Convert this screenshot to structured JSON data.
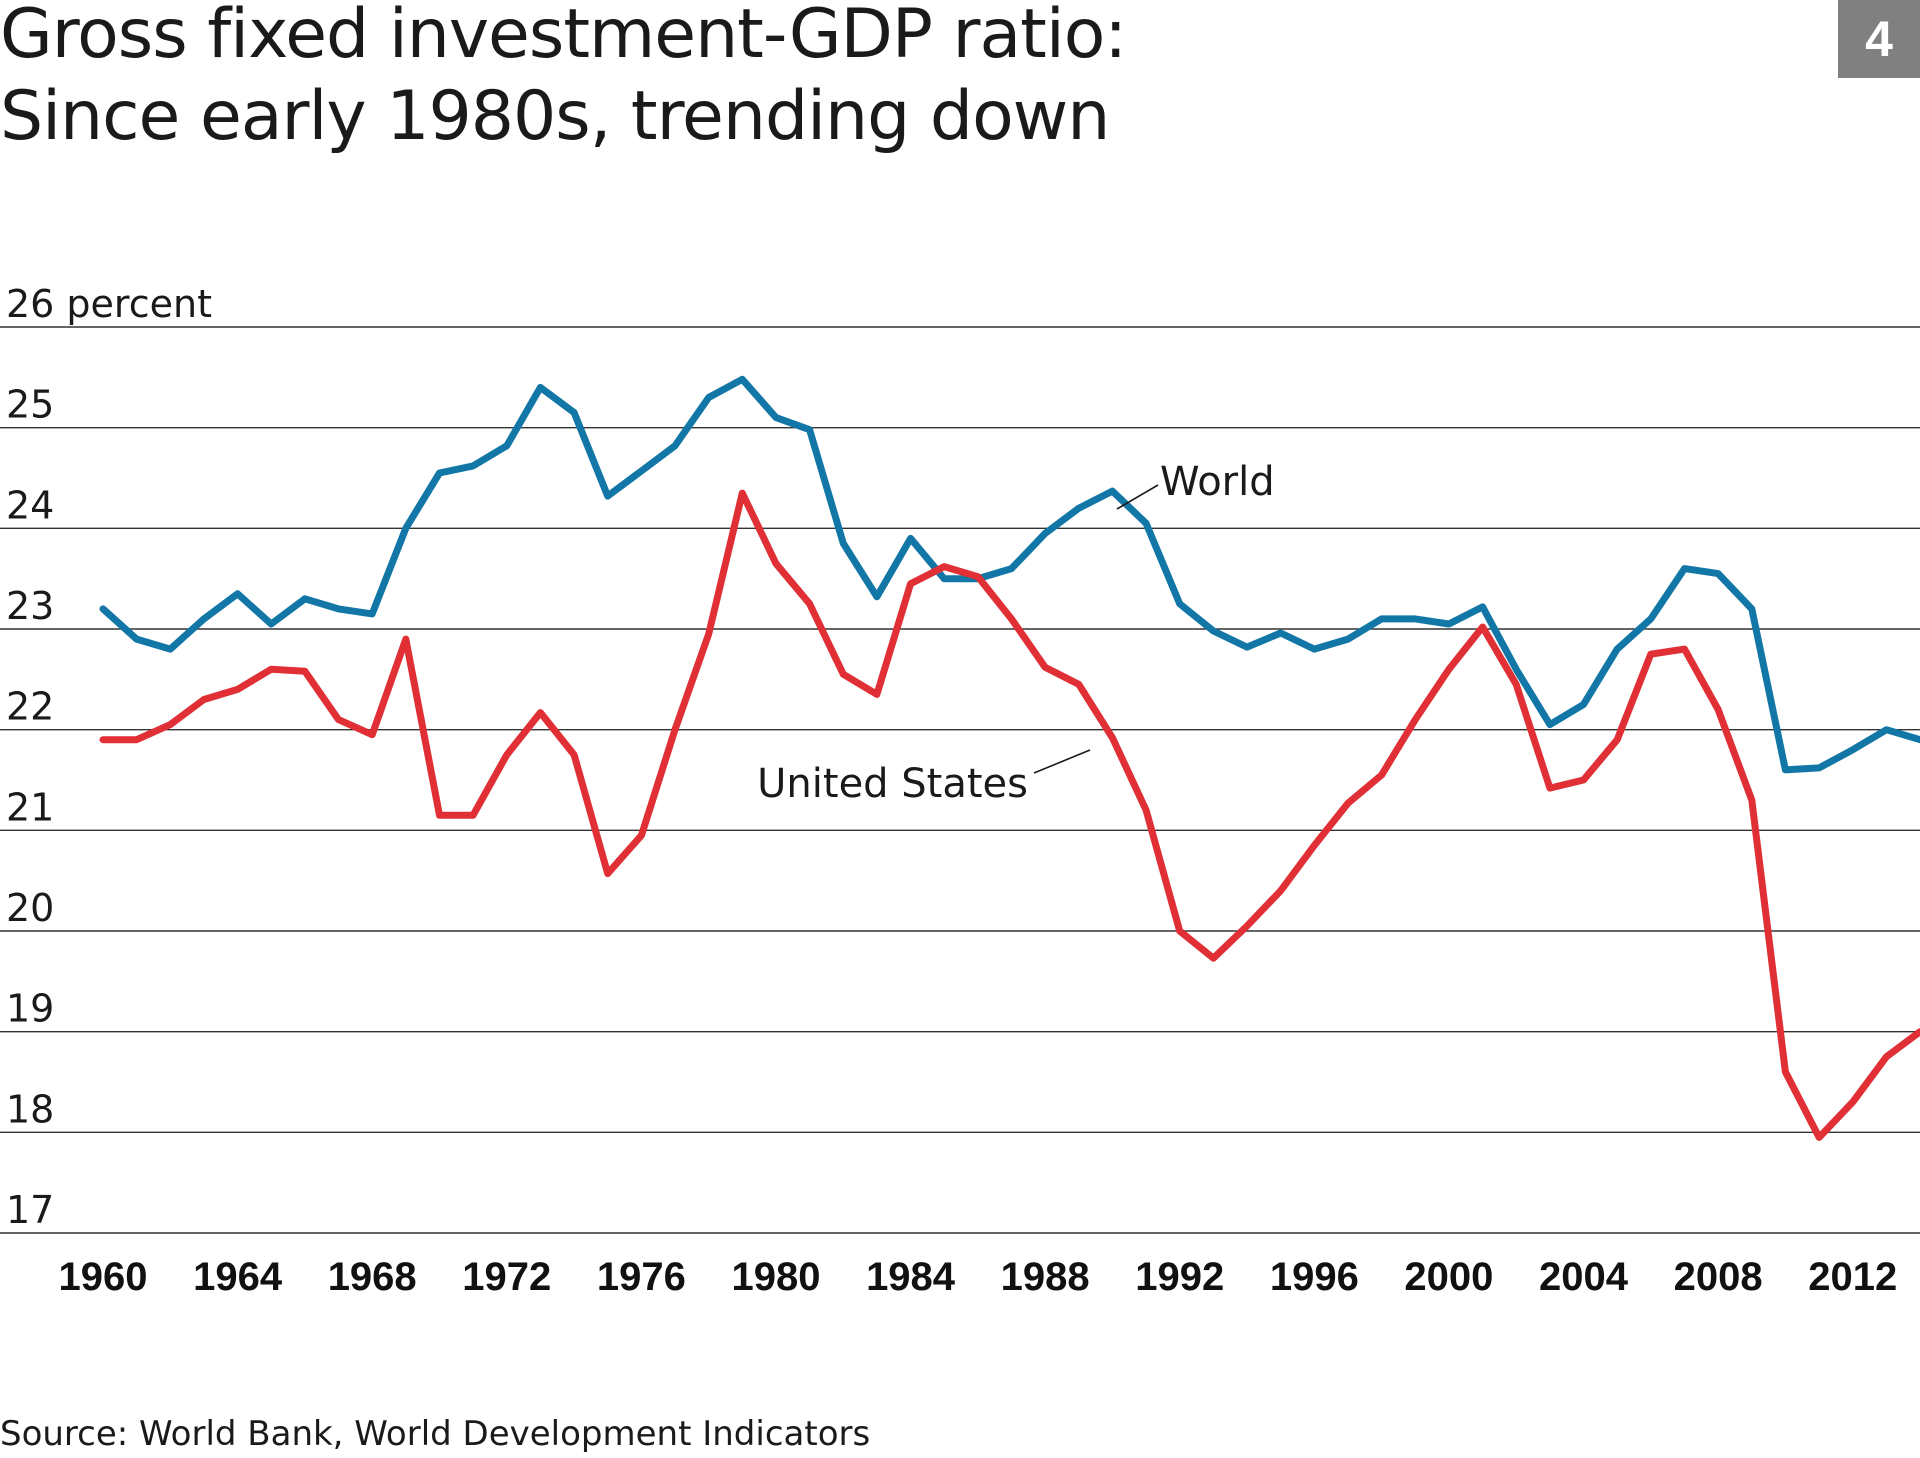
{
  "title_line1": "Gross fixed investment-GDP ratio:",
  "title_line2": "Since early 1980s, trending down",
  "badge": "4",
  "source": "Source: World Bank, World Development Indicators",
  "chart_data": {
    "type": "line",
    "ylabel": "percent",
    "ylim": [
      17,
      26
    ],
    "xlim": [
      1960,
      2014
    ],
    "grid": true,
    "y_ticks": [
      {
        "value": 26,
        "label": "26 percent"
      },
      {
        "value": 25,
        "label": "25"
      },
      {
        "value": 24,
        "label": "24"
      },
      {
        "value": 23,
        "label": "23"
      },
      {
        "value": 22,
        "label": "22"
      },
      {
        "value": 21,
        "label": "21"
      },
      {
        "value": 20,
        "label": "20"
      },
      {
        "value": 19,
        "label": "19"
      },
      {
        "value": 18,
        "label": "18"
      },
      {
        "value": 17,
        "label": "17"
      }
    ],
    "x_ticks": [
      "1960",
      "1964",
      "1968",
      "1972",
      "1976",
      "1980",
      "1984",
      "1988",
      "1992",
      "1996",
      "2000",
      "2004",
      "2008",
      "2012"
    ],
    "x": [
      1960,
      1961,
      1962,
      1963,
      1964,
      1965,
      1966,
      1967,
      1968,
      1969,
      1970,
      1971,
      1972,
      1973,
      1974,
      1975,
      1976,
      1977,
      1978,
      1979,
      1980,
      1981,
      1982,
      1983,
      1984,
      1985,
      1986,
      1987,
      1988,
      1989,
      1990,
      1991,
      1992,
      1993,
      1994,
      1995,
      1996,
      1997,
      1998,
      1999,
      2000,
      2001,
      2002,
      2003,
      2004,
      2005,
      2006,
      2007,
      2008,
      2009,
      2010,
      2011,
      2012,
      2013,
      2014
    ],
    "series": [
      {
        "name": "World",
        "color": "#1277a6",
        "values": [
          23.2,
          22.9,
          22.8,
          23.1,
          23.35,
          23.05,
          23.3,
          23.2,
          23.15,
          24.0,
          24.55,
          24.62,
          24.82,
          25.4,
          25.15,
          24.32,
          24.57,
          24.82,
          25.3,
          25.48,
          25.1,
          24.98,
          23.85,
          23.32,
          23.9,
          23.5,
          23.5,
          23.6,
          23.95,
          24.2,
          24.37,
          24.05,
          23.25,
          22.98,
          22.82,
          22.96,
          22.8,
          22.9,
          23.1,
          23.1,
          23.05,
          23.22,
          22.6,
          22.05,
          22.25,
          22.8,
          23.1,
          23.6,
          23.55,
          23.2,
          21.6,
          21.62,
          21.8,
          22.0,
          21.9
        ]
      },
      {
        "name": "United States",
        "color": "#e03036",
        "values": [
          21.9,
          21.9,
          22.05,
          22.3,
          22.4,
          22.6,
          22.58,
          22.1,
          21.95,
          22.9,
          21.15,
          21.15,
          21.75,
          22.17,
          21.75,
          20.57,
          20.95,
          22.0,
          22.95,
          24.35,
          23.65,
          23.25,
          22.55,
          22.35,
          23.45,
          23.62,
          23.52,
          23.1,
          22.62,
          22.45,
          21.92,
          21.2,
          20.0,
          19.73,
          20.05,
          20.4,
          20.85,
          21.27,
          21.55,
          22.1,
          22.6,
          23.02,
          22.45,
          21.42,
          21.5,
          21.9,
          22.75,
          22.8,
          22.2,
          21.3,
          18.6,
          17.95,
          18.3,
          18.75,
          19.0
        ]
      }
    ],
    "annotations": [
      {
        "text": "World",
        "series": "World"
      },
      {
        "text": "United States",
        "series": "United States"
      }
    ]
  }
}
